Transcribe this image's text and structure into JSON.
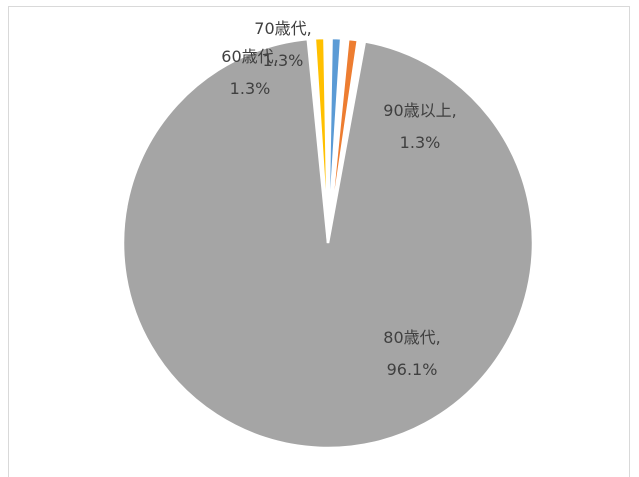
{
  "chart_data": {
    "type": "pie",
    "title": "",
    "categories": [
      "60歳代",
      "70歳代",
      "80歳代",
      "90歳以上"
    ],
    "values": [
      1.3,
      1.3,
      96.1,
      1.3
    ],
    "labels": [
      {
        "category": "60歳代",
        "value": "1.3%"
      },
      {
        "category": "70歳代",
        "value": "1.3%"
      },
      {
        "category": "80歳代",
        "value": "96.1%"
      },
      {
        "category": "90歳以上",
        "value": "1.3%"
      }
    ],
    "colors": [
      "#5b9bd5",
      "#ed7d31",
      "#a5a5a5",
      "#ffc000"
    ],
    "start_angle_deg": 0,
    "legend": "none"
  }
}
